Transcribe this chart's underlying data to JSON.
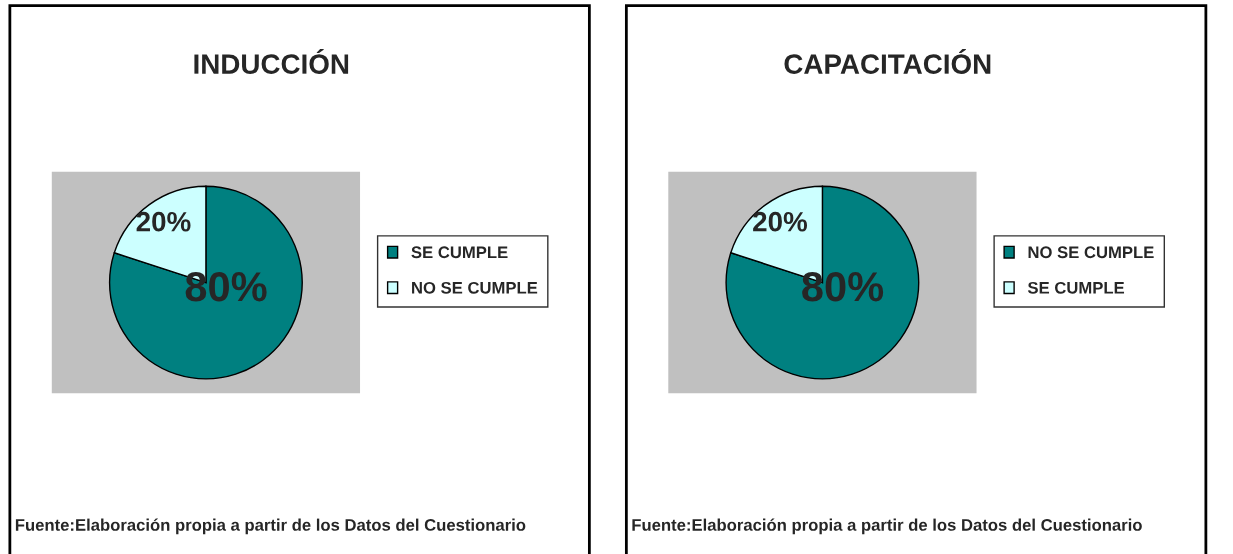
{
  "chart_data": [
    {
      "type": "pie",
      "title": "INDUCCIÓN",
      "categories": [
        "SE CUMPLE",
        "NO SE CUMPLE"
      ],
      "values": [
        80,
        20
      ],
      "colors": [
        "#008080",
        "#ccffff"
      ],
      "value_labels": [
        "80%",
        "20%"
      ],
      "legend": "right",
      "annotations": [
        "Fuente:Elaboración propia a partir de los Datos del Cuestionario"
      ]
    },
    {
      "type": "pie",
      "title": "CAPACITACIÓN",
      "categories": [
        "NO SE CUMPLE",
        "SE CUMPLE"
      ],
      "values": [
        80,
        20
      ],
      "colors": [
        "#008080",
        "#ccffff"
      ],
      "value_labels": [
        "80%",
        "20%"
      ],
      "legend": "right",
      "annotations": [
        "Fuente:Elaboración propia a partir de los Datos del Cuestionario"
      ]
    }
  ]
}
